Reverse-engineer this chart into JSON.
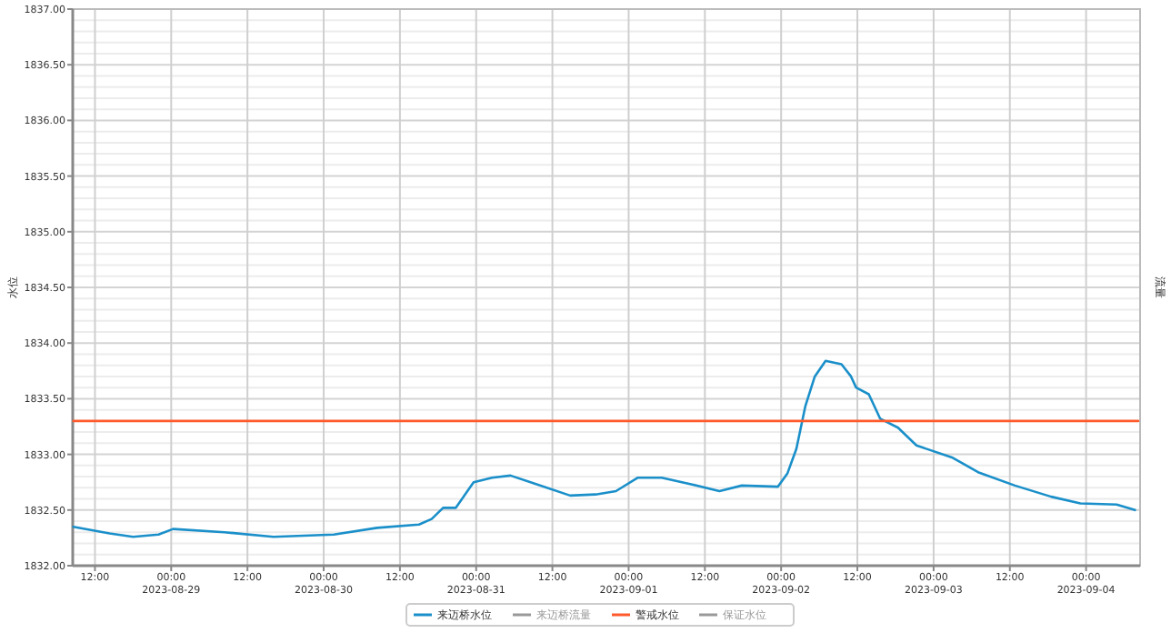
{
  "chart_data": {
    "type": "line",
    "ylabel": "水位",
    "y2label": "流量",
    "xlim": [
      "2023-08-28T08:30",
      "2023-09-04T08:30"
    ],
    "xticks": [
      {
        "value": "2023-08-28T12:00",
        "label": "12:00"
      },
      {
        "value": "2023-08-29T00:00",
        "label": "00:00\n2023-08-29"
      },
      {
        "value": "2023-08-29T12:00",
        "label": "12:00"
      },
      {
        "value": "2023-08-30T00:00",
        "label": "00:00\n2023-08-30"
      },
      {
        "value": "2023-08-30T12:00",
        "label": "12:00"
      },
      {
        "value": "2023-08-31T00:00",
        "label": "00:00\n2023-08-31"
      },
      {
        "value": "2023-08-31T12:00",
        "label": "12:00"
      },
      {
        "value": "2023-09-01T00:00",
        "label": "00:00\n2023-09-01"
      },
      {
        "value": "2023-09-01T12:00",
        "label": "12:00"
      },
      {
        "value": "2023-09-02T00:00",
        "label": "00:00\n2023-09-02"
      },
      {
        "value": "2023-09-02T12:00",
        "label": "12:00"
      },
      {
        "value": "2023-09-03T00:00",
        "label": "00:00\n2023-09-03"
      },
      {
        "value": "2023-09-03T12:00",
        "label": "12:00"
      },
      {
        "value": "2023-09-04T00:00",
        "label": "00:00\n2023-09-04"
      }
    ],
    "ylim": [
      1832,
      1837
    ],
    "yticks": [
      {
        "value": 1832,
        "label": "1832.00"
      },
      {
        "value": 1832.5,
        "label": "1832.50"
      },
      {
        "value": 1833,
        "label": "1833.00"
      },
      {
        "value": 1833.5,
        "label": "1833.50"
      },
      {
        "value": 1834,
        "label": "1834.00"
      },
      {
        "value": 1834.5,
        "label": "1834.50"
      },
      {
        "value": 1835,
        "label": "1835.00"
      },
      {
        "value": 1835.5,
        "label": "1835.50"
      },
      {
        "value": 1836,
        "label": "1836.00"
      },
      {
        "value": 1836.5,
        "label": "1836.50"
      },
      {
        "value": 1837,
        "label": "1837.00"
      }
    ],
    "grid": true,
    "legend": "bottom",
    "marker": "none",
    "line_style": "solid",
    "series": [
      {
        "name": "来迈桥水位",
        "color": "#1a8fc9",
        "x": [
          "2023-08-28T08:36",
          "2023-08-28T14:18",
          "2023-08-28T18:00",
          "2023-08-28T22:00",
          "2023-08-29T00:18",
          "2023-08-29T08:24",
          "2023-08-29T16:06",
          "2023-08-30T01:36",
          "2023-08-30T08:24",
          "2023-08-30T15:00",
          "2023-08-30T17:00",
          "2023-08-30T18:48",
          "2023-08-30T20:48",
          "2023-08-30T23:36",
          "2023-08-31T02:30",
          "2023-08-31T05:24",
          "2023-08-31T09:06",
          "2023-08-31T14:48",
          "2023-08-31T18:48",
          "2023-08-31T22:00",
          "2023-09-01T01:24",
          "2023-09-01T05:12",
          "2023-09-01T09:12",
          "2023-09-01T14:18",
          "2023-09-01T17:48",
          "2023-09-01T23:30",
          "2023-09-02T01:00",
          "2023-09-02T02:24",
          "2023-09-02T03:48",
          "2023-09-02T05:18",
          "2023-09-02T07:00",
          "2023-09-02T09:30",
          "2023-09-02T11:00",
          "2023-09-02T11:48",
          "2023-09-02T13:48",
          "2023-09-02T15:36",
          "2023-09-02T18:24",
          "2023-09-02T21:18",
          "2023-09-03T03:00",
          "2023-09-03T07:00",
          "2023-09-03T12:48",
          "2023-09-03T18:30",
          "2023-09-03T23:06",
          "2023-09-04T04:48",
          "2023-09-04T07:42"
        ],
        "values": [
          1832.35,
          1832.29,
          1832.26,
          1832.28,
          1832.33,
          1832.3,
          1832.26,
          1832.28,
          1832.34,
          1832.37,
          1832.42,
          1832.52,
          1832.52,
          1832.75,
          1832.79,
          1832.81,
          1832.74,
          1832.63,
          1832.64,
          1832.67,
          1832.79,
          1832.79,
          1832.74,
          1832.67,
          1832.72,
          1832.71,
          1832.83,
          1833.05,
          1833.43,
          1833.7,
          1833.84,
          1833.81,
          1833.7,
          1833.6,
          1833.54,
          1833.32,
          1833.24,
          1833.08,
          1832.97,
          1832.84,
          1832.72,
          1832.62,
          1832.56,
          1832.55,
          1832.5
        ]
      },
      {
        "name": "来迈桥流量",
        "color": "#999999"
      },
      {
        "name": "警戒水位",
        "color": "#ff5a2c",
        "x": [
          "2023-08-28T08:36",
          "2023-09-04T08:12"
        ],
        "values": [
          1833.3,
          1833.3
        ]
      },
      {
        "name": "保证水位",
        "color": "#999999"
      }
    ]
  }
}
